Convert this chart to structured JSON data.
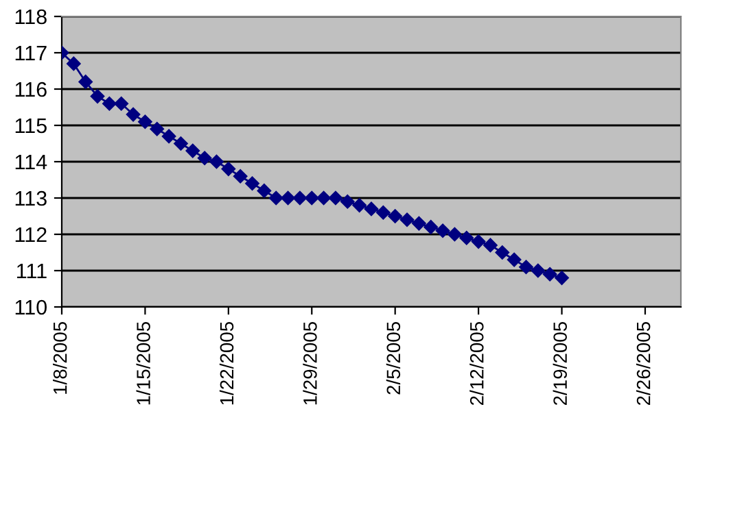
{
  "chart_data": {
    "type": "line",
    "x": [
      "2005-01-08",
      "2005-01-09",
      "2005-01-10",
      "2005-01-11",
      "2005-01-12",
      "2005-01-13",
      "2005-01-14",
      "2005-01-15",
      "2005-01-16",
      "2005-01-17",
      "2005-01-18",
      "2005-01-19",
      "2005-01-20",
      "2005-01-21",
      "2005-01-22",
      "2005-01-23",
      "2005-01-24",
      "2005-01-25",
      "2005-01-26",
      "2005-01-27",
      "2005-01-28",
      "2005-01-29",
      "2005-01-30",
      "2005-01-31",
      "2005-02-01",
      "2005-02-02",
      "2005-02-03",
      "2005-02-04",
      "2005-02-05",
      "2005-02-06",
      "2005-02-07",
      "2005-02-08",
      "2005-02-09",
      "2005-02-10",
      "2005-02-11",
      "2005-02-12",
      "2005-02-13",
      "2005-02-14",
      "2005-02-15",
      "2005-02-16",
      "2005-02-17",
      "2005-02-18",
      "2005-02-19"
    ],
    "series": [
      {
        "color": "#000080",
        "values": [
          117.0,
          116.7,
          116.2,
          115.8,
          115.6,
          115.6,
          115.3,
          115.1,
          114.9,
          114.7,
          114.5,
          114.3,
          114.1,
          114.0,
          113.8,
          113.6,
          113.4,
          113.2,
          113.0,
          113.0,
          113.0,
          113.0,
          113.0,
          113.0,
          112.9,
          112.8,
          112.7,
          112.6,
          112.5,
          112.4,
          112.3,
          112.2,
          112.1,
          112.0,
          111.9,
          111.8,
          111.7,
          111.5,
          111.3,
          111.1,
          111.0,
          110.9,
          110.8
        ]
      }
    ],
    "xlim": [
      "2005-01-08",
      "2005-03-01"
    ],
    "xticks": [
      {
        "value": "2005-01-08",
        "label": "1/8/2005"
      },
      {
        "value": "2005-01-15",
        "label": "1/15/2005"
      },
      {
        "value": "2005-01-22",
        "label": "1/22/2005"
      },
      {
        "value": "2005-01-29",
        "label": "1/29/2005"
      },
      {
        "value": "2005-02-05",
        "label": "2/5/2005"
      },
      {
        "value": "2005-02-12",
        "label": "2/12/2005"
      },
      {
        "value": "2005-02-19",
        "label": "2/19/2005"
      },
      {
        "value": "2005-02-26",
        "label": "2/26/2005"
      }
    ],
    "ylim": [
      110,
      118
    ],
    "yticks": [
      110,
      111,
      112,
      113,
      114,
      115,
      116,
      117,
      118
    ],
    "grid": "y",
    "legend": false,
    "marker": "diamond",
    "line_style": "solid"
  }
}
